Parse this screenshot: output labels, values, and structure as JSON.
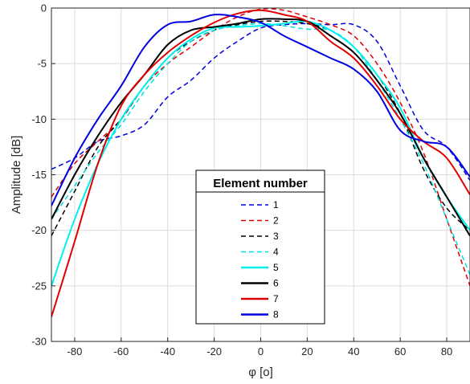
{
  "chart_data": {
    "type": "line",
    "title": "",
    "xlabel": "φ [o]",
    "ylabel": "Amplitude [dB]",
    "xlim": [
      -90,
      90
    ],
    "ylim": [
      -30,
      0
    ],
    "xticks": [
      -80,
      -60,
      -40,
      -20,
      0,
      20,
      40,
      60,
      80
    ],
    "yticks": [
      0,
      -5,
      -10,
      -15,
      -20,
      -25,
      -30
    ],
    "grid": true,
    "legend": {
      "title": "Element number",
      "placement": "bottom-center"
    },
    "x": [
      -90,
      -80,
      -70,
      -60,
      -50,
      -40,
      -30,
      -20,
      -10,
      0,
      10,
      20,
      30,
      40,
      50,
      60,
      70,
      80,
      90
    ],
    "series": [
      {
        "name": "1",
        "color": "#0000e0",
        "style": "dashed",
        "values": [
          -14.5,
          -13.5,
          -12,
          -11.5,
          -10.5,
          -8,
          -6.5,
          -4.5,
          -3,
          -1.8,
          -1.5,
          -1.4,
          -1.5,
          -1.5,
          -3,
          -7,
          -11,
          -12.5,
          -15.5
        ]
      },
      {
        "name": "2",
        "color": "#e00000",
        "style": "dashed",
        "values": [
          -17,
          -14,
          -12,
          -10,
          -7,
          -5,
          -3.5,
          -2,
          -0.8,
          -0.1,
          -0.2,
          -0.8,
          -1.5,
          -2.5,
          -5,
          -8.5,
          -13,
          -19,
          -25
        ]
      },
      {
        "name": "3",
        "color": "#000000",
        "style": "dashed",
        "values": [
          -20.5,
          -16.5,
          -12.5,
          -10,
          -7,
          -4.5,
          -3,
          -2,
          -1.5,
          -1.2,
          -1.2,
          -1.4,
          -2,
          -3.5,
          -6,
          -9.5,
          -14.5,
          -18,
          -20
        ]
      },
      {
        "name": "4",
        "color": "#00e0e0",
        "style": "dashed",
        "values": [
          -19,
          -16,
          -13,
          -10.5,
          -7.5,
          -5,
          -3,
          -2,
          -1.6,
          -1.4,
          -1.6,
          -1.9,
          -2,
          -3.5,
          -6.5,
          -10,
          -14,
          -19,
          -24
        ]
      },
      {
        "name": "5",
        "color": "#00f0f0",
        "style": "solid",
        "values": [
          -25,
          -19,
          -14,
          -10,
          -7,
          -4.5,
          -2.8,
          -1.8,
          -1.7,
          -1.6,
          -1.4,
          -1.2,
          -2,
          -3.5,
          -6,
          -9,
          -13.5,
          -17,
          -20
        ]
      },
      {
        "name": "6",
        "color": "#000000",
        "style": "solid",
        "values": [
          -19,
          -15,
          -11.5,
          -8.5,
          -6,
          -3.3,
          -2,
          -1.7,
          -1.4,
          -1,
          -1,
          -1.2,
          -2.5,
          -4,
          -6.5,
          -9.5,
          -13.5,
          -17,
          -20.5
        ]
      },
      {
        "name": "7",
        "color": "#e00000",
        "style": "solid",
        "values": [
          -27.8,
          -21,
          -14,
          -8.8,
          -6,
          -4,
          -2.5,
          -1.3,
          -0.5,
          -0.2,
          -0.6,
          -1.2,
          -3,
          -4.5,
          -7,
          -10,
          -12,
          -13.5,
          -16.8
        ]
      },
      {
        "name": "8",
        "color": "#0000e0",
        "style": "solid",
        "values": [
          -17.8,
          -13.5,
          -10,
          -7,
          -3.5,
          -1.5,
          -1.2,
          -0.6,
          -0.8,
          -1.3,
          -2.5,
          -3.5,
          -4.5,
          -5.5,
          -7.5,
          -11,
          -12,
          -12.5,
          -15.2
        ]
      }
    ]
  }
}
